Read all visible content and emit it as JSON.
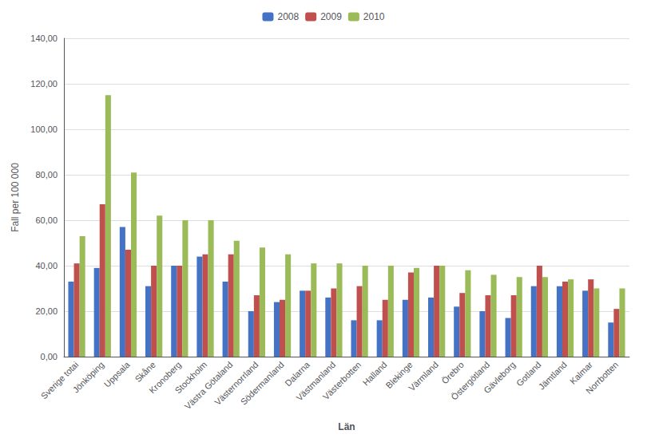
{
  "chart_data": {
    "type": "bar",
    "categories": [
      "Sverige totai",
      "Jönköping",
      "Uppsala",
      "Skåne",
      "Kronoberg",
      "Stockholm",
      "Västra Götaland",
      "Västernorrland",
      "Södermanland",
      "Dalarna",
      "Västmanland",
      "Västerbotten",
      "Halland",
      "Blekinge",
      "Värmland",
      "Örebro",
      "Östergötland",
      "Gävleborg",
      "Gotland",
      "Jämtland",
      "Kalmar",
      "Norrbotten"
    ],
    "series": [
      {
        "name": "2008",
        "color": "#4472C4",
        "values": [
          33,
          39,
          57,
          31,
          40,
          44,
          33,
          20,
          24,
          29,
          26,
          16,
          16,
          25,
          26,
          22,
          20,
          17,
          31,
          31,
          29,
          15
        ]
      },
      {
        "name": "2009",
        "color": "#C0504D",
        "values": [
          41,
          67,
          47,
          40,
          40,
          45,
          45,
          27,
          25,
          29,
          30,
          31,
          25,
          37,
          40,
          28,
          27,
          27,
          40,
          33,
          34,
          21
        ]
      },
      {
        "name": "2010",
        "color": "#9BBB59",
        "values": [
          53,
          115,
          81,
          62,
          60,
          60,
          51,
          48,
          45,
          41,
          41,
          40,
          40,
          39,
          40,
          38,
          36,
          35,
          35,
          34,
          30,
          30
        ]
      }
    ],
    "xlabel": "Län",
    "ylabel": "Fall per 100 000",
    "ylim": [
      0,
      140
    ],
    "yticks": [
      {
        "value": 0,
        "label": "0,00"
      },
      {
        "value": 20,
        "label": "20,00"
      },
      {
        "value": 40,
        "label": "40,00"
      },
      {
        "value": 60,
        "label": "60,00"
      },
      {
        "value": 80,
        "label": "80,00"
      },
      {
        "value": 100,
        "label": "100,00"
      },
      {
        "value": 120,
        "label": "120,00"
      },
      {
        "value": 140,
        "label": "140,00"
      }
    ],
    "grid": true,
    "legend": "top"
  }
}
